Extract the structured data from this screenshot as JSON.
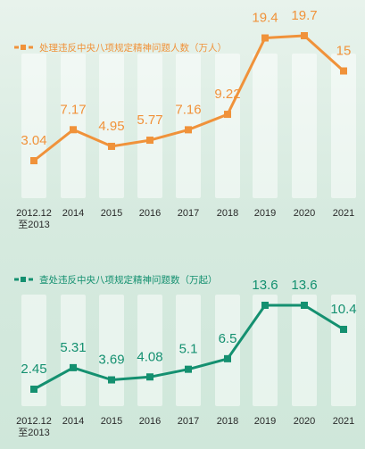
{
  "chart_data": [
    {
      "type": "line",
      "title": "处理违反中央八项规定精神问题人数（万人）",
      "categories": [
        "2012.12\n至2013",
        "2014",
        "2015",
        "2016",
        "2017",
        "2018",
        "2019",
        "2020",
        "2021"
      ],
      "values": [
        3.04,
        7.17,
        4.95,
        5.77,
        7.16,
        9.22,
        19.4,
        19.7,
        15
      ],
      "value_labels": [
        "3.04",
        "7.17",
        "4.95",
        "5.77",
        "7.16",
        "9.22",
        "19.4",
        "19.7",
        "15"
      ],
      "color": "#f0923a",
      "legend_placement": "top-left",
      "grid": false
    },
    {
      "type": "line",
      "title": "查处违反中央八项规定精神问题数（万起）",
      "categories": [
        "2012.12\n至2013",
        "2014",
        "2015",
        "2016",
        "2017",
        "2018",
        "2019",
        "2020",
        "2021"
      ],
      "values": [
        2.45,
        5.31,
        3.69,
        4.08,
        5.1,
        6.5,
        13.6,
        13.6,
        10.4
      ],
      "value_labels": [
        "2.45",
        "5.31",
        "3.69",
        "4.08",
        "5.1",
        "6.5",
        "13.6",
        "13.6",
        "10.4"
      ],
      "color": "#149070",
      "legend_placement": "top-left",
      "grid": false
    }
  ]
}
